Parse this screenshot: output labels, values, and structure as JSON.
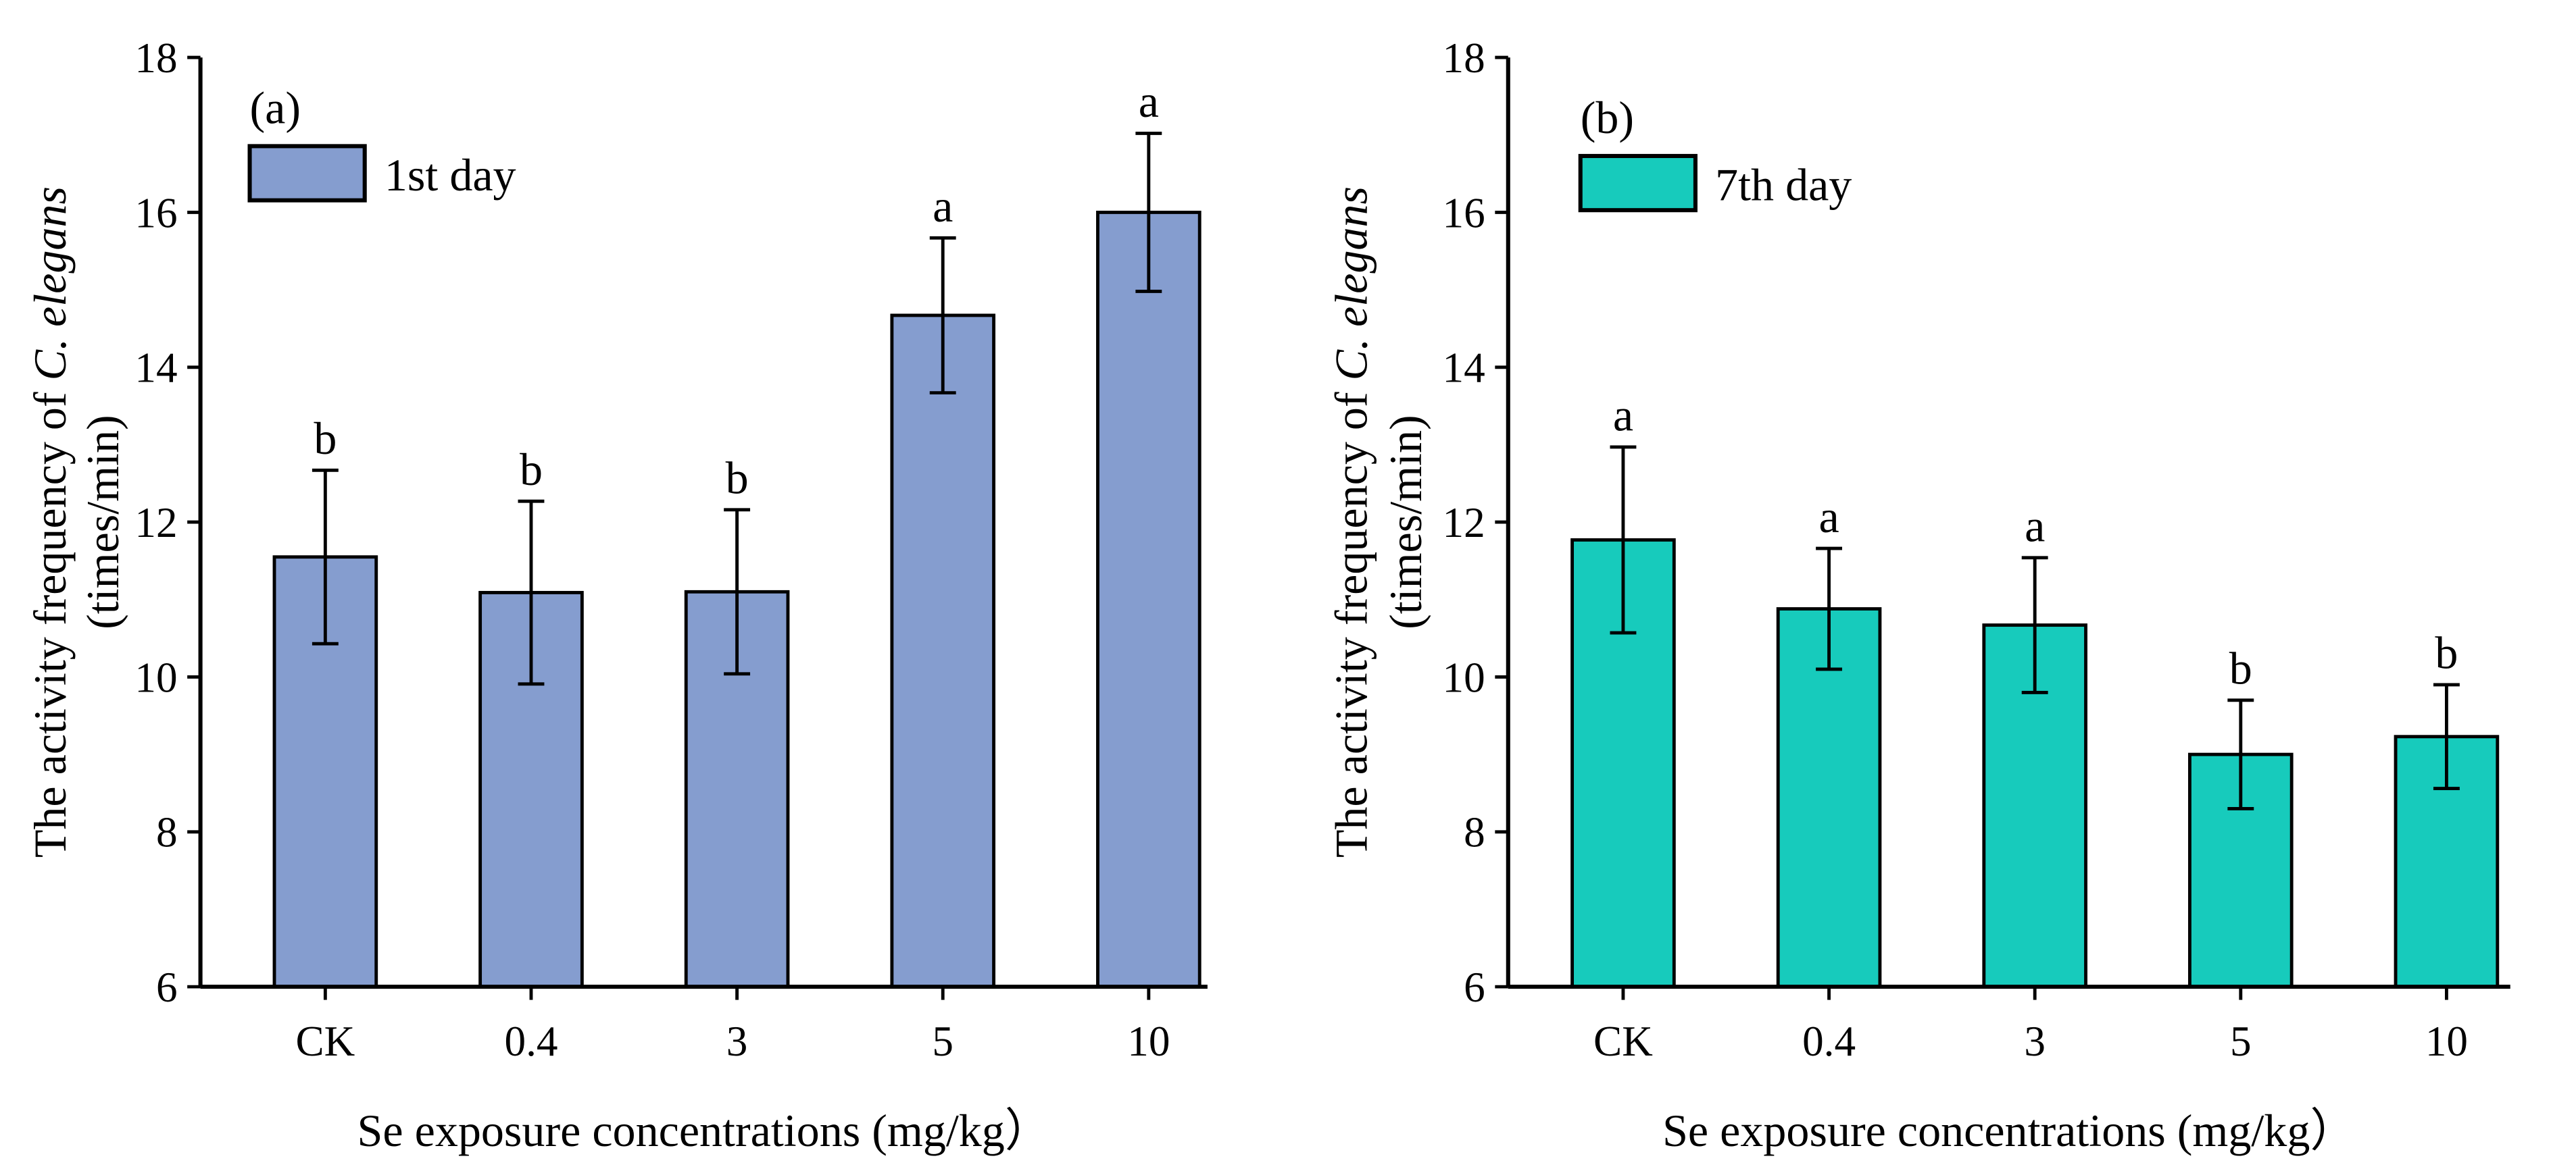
{
  "chart_data": [
    {
      "type": "bar",
      "panel_label": "(a)",
      "legend": "1st day",
      "legend_position": "top-left",
      "color": "#859dcf",
      "categories": [
        "CK",
        "0.4",
        "3",
        "5",
        "10"
      ],
      "values": [
        11.55,
        11.09,
        11.1,
        14.67,
        16.0
      ],
      "errors": [
        1.12,
        1.18,
        1.06,
        1.0,
        1.02
      ],
      "significance": [
        "b",
        "b",
        "b",
        "a",
        "a"
      ],
      "ylabel_line1_prefix": "The activity frequency of ",
      "ylabel_line1_species": "C. elegans",
      "ylabel_line2": "(times/min)",
      "xlabel": "Se exposure concentrations (mg/kg）",
      "ylim": [
        6,
        18
      ],
      "yticks": [
        "6",
        "8",
        "10",
        "12",
        "14",
        "16",
        "18"
      ],
      "grid": false
    },
    {
      "type": "bar",
      "panel_label": "(b)",
      "legend": "7th day",
      "legend_position": "top-left",
      "color": "#17cbbc",
      "categories": [
        "CK",
        "0.4",
        "3",
        "5",
        "10"
      ],
      "values": [
        11.77,
        10.88,
        10.67,
        9.0,
        9.23
      ],
      "errors": [
        1.2,
        0.78,
        0.87,
        0.7,
        0.67
      ],
      "significance": [
        "a",
        "a",
        "a",
        "b",
        "b"
      ],
      "ylabel_line1_prefix": "The activity frequency of ",
      "ylabel_line1_species": "C. elegans",
      "ylabel_line2": "(times/min)",
      "xlabel": "Se exposure concentrations (mg/kg）",
      "ylim": [
        6,
        18
      ],
      "yticks": [
        "6",
        "8",
        "10",
        "12",
        "14",
        "16",
        "18"
      ],
      "grid": false
    }
  ]
}
